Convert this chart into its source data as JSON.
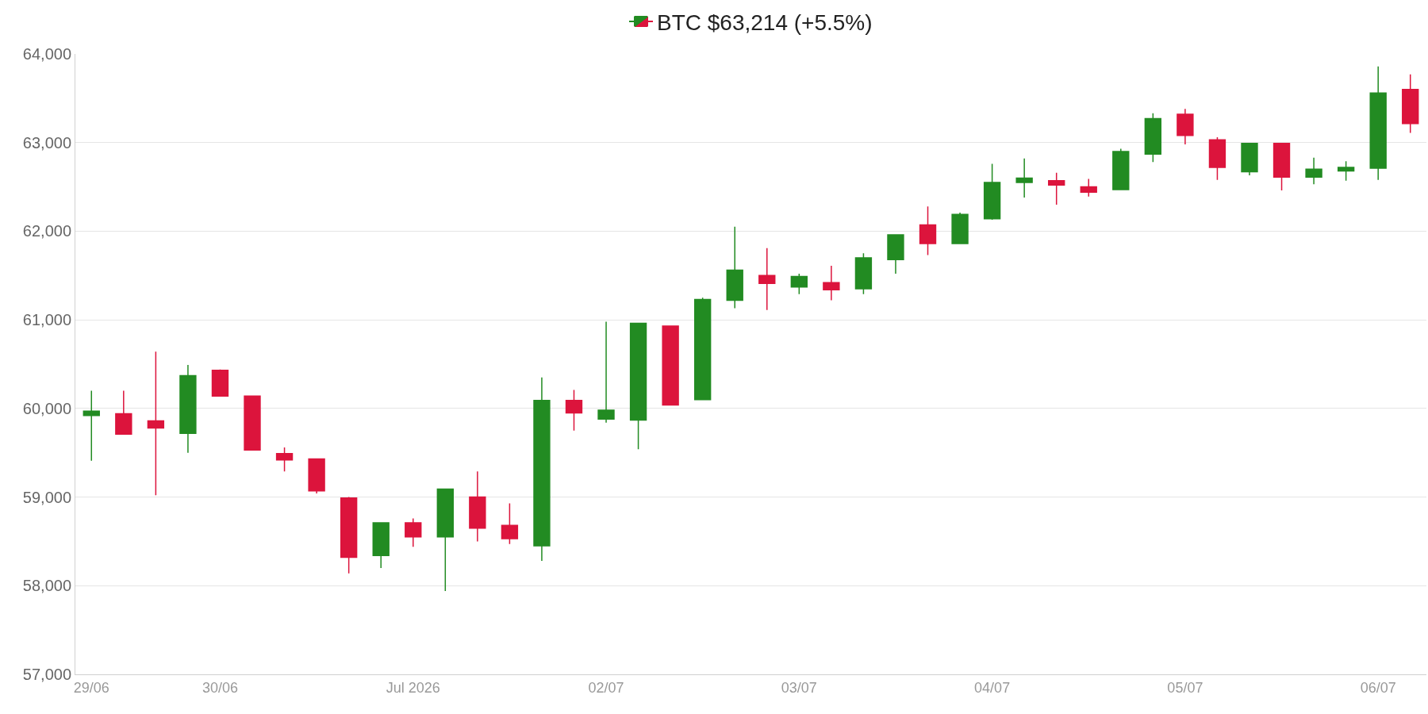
{
  "chart_data": {
    "type": "candlestick",
    "x": [
      "2026-06-29T08:00",
      "2026-06-29T12:00",
      "2026-06-29T16:00",
      "2026-06-29T20:00",
      "2026-06-30T00:00",
      "2026-06-30T04:00",
      "2026-06-30T08:00",
      "2026-06-30T12:00",
      "2026-06-30T16:00",
      "2026-06-30T20:00",
      "2026-07-01T00:00",
      "2026-07-01T04:00",
      "2026-07-01T08:00",
      "2026-07-01T12:00",
      "2026-07-01T16:00",
      "2026-07-01T20:00",
      "2026-07-02T00:00",
      "2026-07-02T04:00",
      "2026-07-02T08:00",
      "2026-07-02T12:00",
      "2026-07-02T16:00",
      "2026-07-02T20:00",
      "2026-07-03T00:00",
      "2026-07-03T04:00",
      "2026-07-03T08:00",
      "2026-07-03T12:00",
      "2026-07-03T16:00",
      "2026-07-03T20:00",
      "2026-07-04T00:00",
      "2026-07-04T04:00",
      "2026-07-04T08:00",
      "2026-07-04T12:00",
      "2026-07-04T16:00",
      "2026-07-04T20:00",
      "2026-07-05T00:00",
      "2026-07-05T04:00",
      "2026-07-05T08:00",
      "2026-07-05T12:00",
      "2026-07-05T16:00",
      "2026-07-05T20:00",
      "2026-07-06T00:00",
      "2026-07-06T04:00"
    ],
    "series": [
      {
        "name": "BTC $63,214 (+5.5%)",
        "ohlc": [
          [
            59920,
            60200,
            59410,
            59970
          ],
          [
            59940,
            60200,
            59710,
            59710
          ],
          [
            59860,
            60640,
            59020,
            59780
          ],
          [
            59720,
            60490,
            59500,
            60370
          ],
          [
            60430,
            60440,
            60140,
            60140
          ],
          [
            60140,
            60140,
            59530,
            59530
          ],
          [
            59490,
            59560,
            59290,
            59420
          ],
          [
            59430,
            59430,
            59040,
            59070
          ],
          [
            58990,
            59000,
            58140,
            58320
          ],
          [
            58340,
            58710,
            58200,
            58710
          ],
          [
            58710,
            58760,
            58440,
            58550
          ],
          [
            58550,
            59090,
            57940,
            59090
          ],
          [
            59000,
            59290,
            58500,
            58650
          ],
          [
            58680,
            58930,
            58470,
            58530
          ],
          [
            58450,
            60350,
            58280,
            60090
          ],
          [
            60090,
            60210,
            59750,
            59950
          ],
          [
            59880,
            60980,
            59840,
            59980
          ],
          [
            59870,
            60960,
            59540,
            60960
          ],
          [
            60930,
            60930,
            60040,
            60040
          ],
          [
            60100,
            61250,
            60100,
            61230
          ],
          [
            61220,
            62050,
            61130,
            61560
          ],
          [
            61500,
            61810,
            61110,
            61410
          ],
          [
            61370,
            61520,
            61290,
            61490
          ],
          [
            61420,
            61610,
            61220,
            61340
          ],
          [
            61350,
            61750,
            61290,
            61700
          ],
          [
            61680,
            61960,
            61520,
            61960
          ],
          [
            62070,
            62280,
            61730,
            61860
          ],
          [
            61860,
            62210,
            61860,
            62190
          ],
          [
            62140,
            62760,
            62130,
            62550
          ],
          [
            62550,
            62820,
            62380,
            62600
          ],
          [
            62570,
            62660,
            62300,
            62520
          ],
          [
            62500,
            62590,
            62390,
            62440
          ],
          [
            62470,
            62930,
            62470,
            62900
          ],
          [
            62870,
            63330,
            62780,
            63270
          ],
          [
            63320,
            63380,
            62980,
            63080
          ],
          [
            63030,
            63060,
            62580,
            62720
          ],
          [
            62670,
            62990,
            62630,
            62990
          ],
          [
            62990,
            62990,
            62460,
            62610
          ],
          [
            62610,
            62830,
            62530,
            62700
          ],
          [
            62680,
            62790,
            62570,
            62720
          ],
          [
            62710,
            63860,
            62580,
            63560
          ],
          [
            63600,
            63770,
            63110,
            63214
          ]
        ],
        "colors": [
          "#228b22",
          "#dc143c",
          "#dc143c",
          "#228b22",
          "#dc143c",
          "#dc143c",
          "#dc143c",
          "#dc143c",
          "#dc143c",
          "#228b22",
          "#dc143c",
          "#228b22",
          "#dc143c",
          "#dc143c",
          "#228b22",
          "#dc143c",
          "#228b22",
          "#228b22",
          "#dc143c",
          "#228b22",
          "#228b22",
          "#dc143c",
          "#228b22",
          "#dc143c",
          "#228b22",
          "#228b22",
          "#dc143c",
          "#228b22",
          "#228b22",
          "#228b22",
          "#dc143c",
          "#dc143c",
          "#228b22",
          "#228b22",
          "#dc143c",
          "#dc143c",
          "#228b22",
          "#dc143c",
          "#228b22",
          "#228b22",
          "#228b22",
          "#dc143c"
        ]
      }
    ],
    "xlim": [
      "2026-06-29T06:00",
      "2026-07-06T06:00"
    ],
    "xticks": [
      {
        "value": "2026-06-29T08:00",
        "label": "29/06"
      },
      {
        "value": "2026-06-30T00:00",
        "label": "30/06"
      },
      {
        "value": "2026-07-01T00:00",
        "label": "Jul 2026"
      },
      {
        "value": "2026-07-02T00:00",
        "label": "02/07"
      },
      {
        "value": "2026-07-03T00:00",
        "label": "03/07"
      },
      {
        "value": "2026-07-04T00:00",
        "label": "04/07"
      },
      {
        "value": "2026-07-05T00:00",
        "label": "05/07"
      },
      {
        "value": "2026-07-06T00:00",
        "label": "06/07"
      }
    ],
    "ylim": [
      57000,
      64000
    ],
    "yticks": [
      {
        "value": 57000,
        "label": "57,000"
      },
      {
        "value": 58000,
        "label": "58,000"
      },
      {
        "value": 59000,
        "label": "59,000"
      },
      {
        "value": 60000,
        "label": "60,000"
      },
      {
        "value": 61000,
        "label": "61,000"
      },
      {
        "value": 62000,
        "label": "62,000"
      },
      {
        "value": 63000,
        "label": "63,000"
      },
      {
        "value": 64000,
        "label": "64,000"
      }
    ],
    "grid": "y",
    "legend": "top"
  }
}
